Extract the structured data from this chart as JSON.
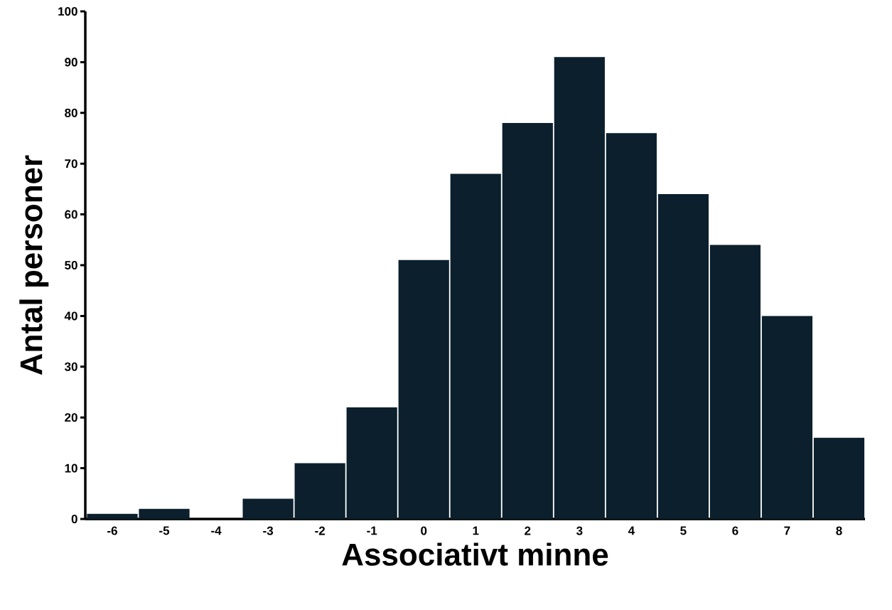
{
  "chart_data": {
    "type": "bar",
    "xlabel": "Associativt minne",
    "ylabel": "Antal personer",
    "categories": [
      "-6",
      "-5",
      "-4",
      "-3",
      "-2",
      "-1",
      "0",
      "1",
      "2",
      "3",
      "4",
      "5",
      "6",
      "7",
      "8"
    ],
    "values": [
      1,
      2,
      0,
      4,
      11,
      22,
      51,
      68,
      78,
      91,
      76,
      64,
      54,
      40,
      16
    ],
    "color": "#0b1f2c",
    "ylim": [
      0,
      100
    ],
    "yticks": [
      0,
      10,
      20,
      30,
      40,
      50,
      60,
      70,
      80,
      90,
      100
    ],
    "grid": false
  }
}
